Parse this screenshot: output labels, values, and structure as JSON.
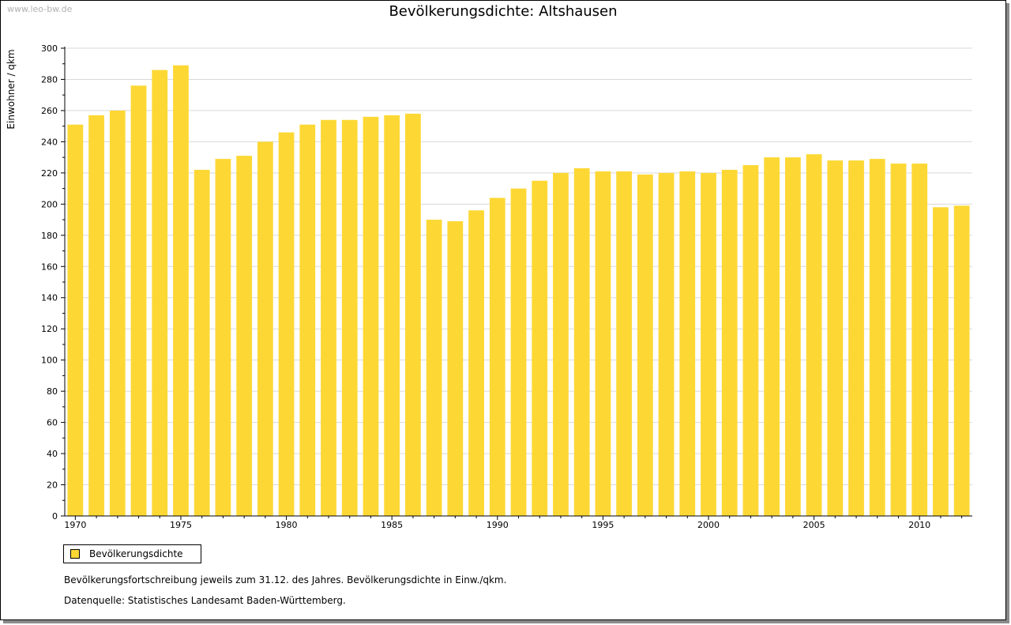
{
  "watermark": "www.leo-bw.de",
  "footnote_text": "Bevölkerungsfortschreibung jeweils zum 31.12. des Jahres. Bevölkerungsdichte in Einw./qkm.",
  "source_text": "Datenquelle: Statistisches Landesamt Baden-Württemberg.",
  "colors": {
    "bar": "#FDD835",
    "grid": "#d9d9d9",
    "axis": "#000000"
  },
  "chart_data": {
    "type": "bar",
    "title": "Bevölkerungsdichte: Altshausen",
    "ylabel": "Einwohner / qkm",
    "xlabel": "",
    "ylim": [
      0,
      300
    ],
    "yticks": [
      0,
      20,
      40,
      60,
      80,
      100,
      120,
      140,
      160,
      180,
      200,
      220,
      240,
      260,
      280,
      300
    ],
    "xtick_labels": [
      "1970",
      "1975",
      "1980",
      "1985",
      "1990",
      "1995",
      "2000",
      "2005",
      "2010"
    ],
    "grid": true,
    "legend": "bottom-left",
    "categories": [
      1970,
      1971,
      1972,
      1973,
      1974,
      1975,
      1976,
      1977,
      1978,
      1979,
      1980,
      1981,
      1982,
      1983,
      1984,
      1985,
      1986,
      1987,
      1988,
      1989,
      1990,
      1991,
      1992,
      1993,
      1994,
      1995,
      1996,
      1997,
      1998,
      1999,
      2000,
      2001,
      2002,
      2003,
      2004,
      2005,
      2006,
      2007,
      2008,
      2009,
      2010,
      2011,
      2012
    ],
    "series": [
      {
        "name": "Bevölkerungsdichte",
        "values": [
          251,
          257,
          260,
          276,
          286,
          289,
          222,
          229,
          231,
          240,
          246,
          251,
          254,
          254,
          256,
          257,
          258,
          190,
          189,
          196,
          204,
          210,
          215,
          220,
          223,
          221,
          221,
          219,
          220,
          221,
          220,
          222,
          225,
          230,
          230,
          232,
          228,
          228,
          229,
          226,
          226,
          198,
          199
        ]
      }
    ]
  }
}
